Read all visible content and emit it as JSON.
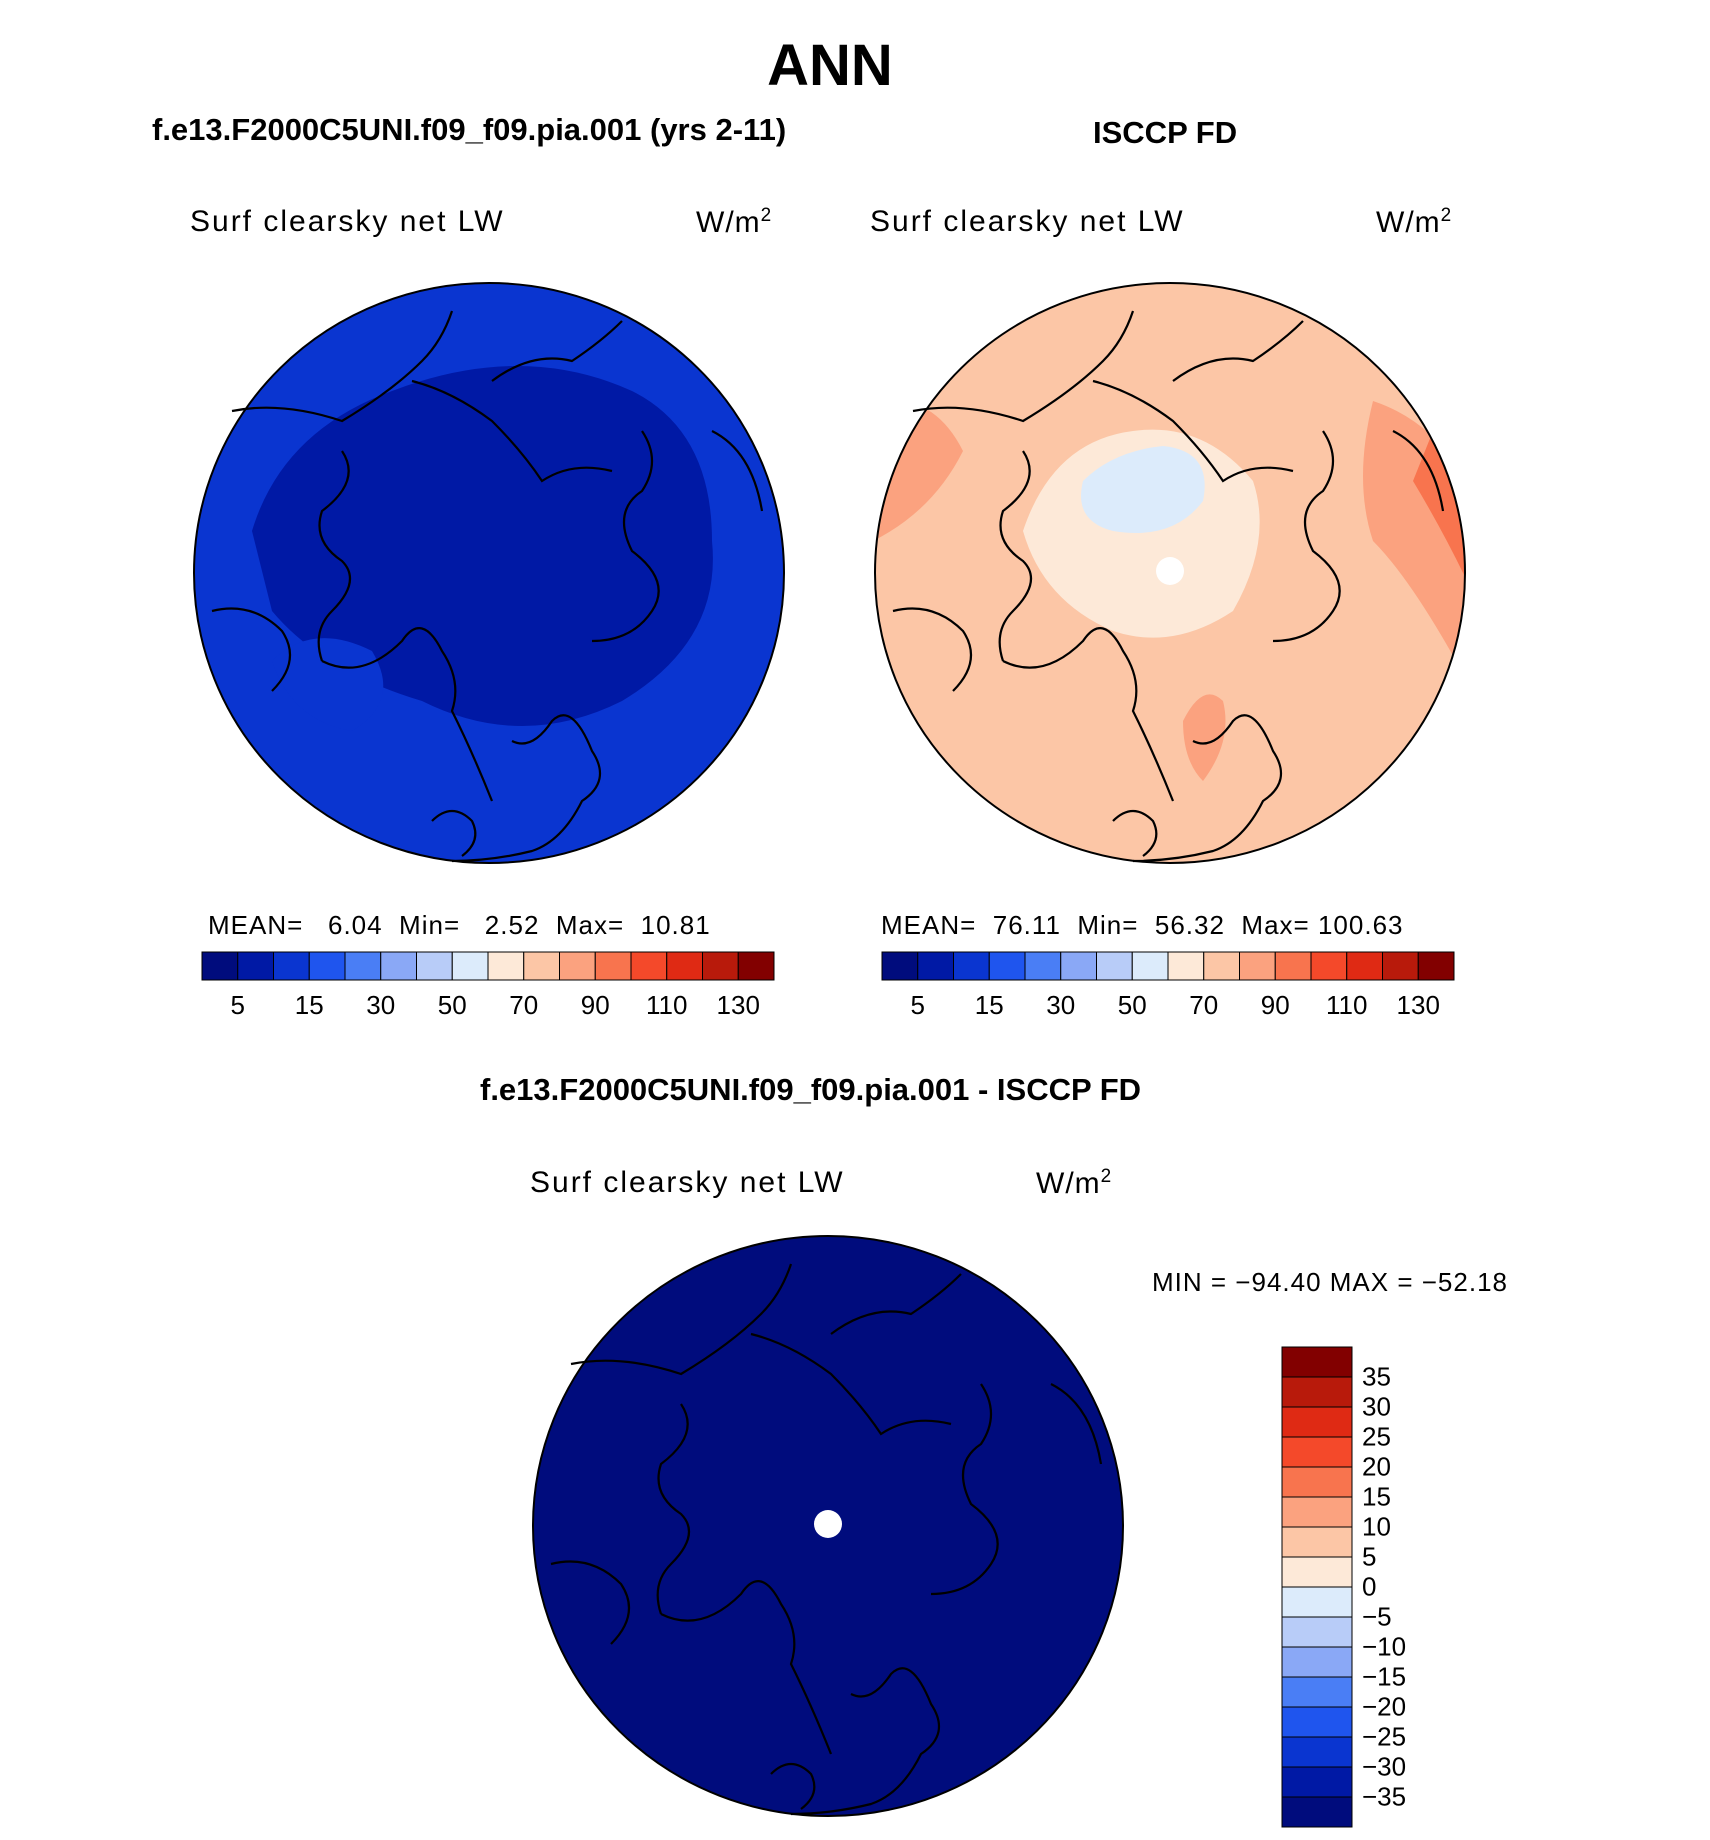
{
  "figure_title": "ANN",
  "panels": [
    {
      "title": "f.e13.F2000C5UNI.f09_f09.pia.001 (yrs 2-11)",
      "field": "Surf clearsky net LW",
      "unit": "W/m",
      "unit_exp": "2",
      "mean_label": "MEAN=",
      "mean": "6.04",
      "min_label": "Min=",
      "min": "2.52",
      "max_label": "Max=",
      "max": "10.81"
    },
    {
      "title": "ISCCP FD",
      "field": "Surf clearsky net LW",
      "unit": "W/m",
      "unit_exp": "2",
      "mean_label": "MEAN=",
      "mean": "76.11",
      "min_label": "Min=",
      "min": "56.32",
      "max_label": "Max=",
      "max": "100.63"
    }
  ],
  "diff_panel": {
    "title": "f.e13.F2000C5UNI.f09_f09.pia.001 - ISCCP FD",
    "field": "Surf clearsky net LW",
    "unit": "W/m",
    "unit_exp": "2",
    "min_label": "MIN = ",
    "min": "−94.40",
    "max_label": " MAX = ",
    "max": "−52.18"
  },
  "colorbar_horizontal": {
    "ticks": [
      "5",
      "15",
      "30",
      "50",
      "70",
      "90",
      "110",
      "130"
    ],
    "colors": [
      "#000c7d",
      "#0019a5",
      "#0a35d0",
      "#1f55ee",
      "#4a7ef5",
      "#8aa8f6",
      "#b8ccf8",
      "#dcebfb",
      "#fde9d8",
      "#fcc6a6",
      "#fba27f",
      "#f8744e",
      "#f4492a",
      "#df2a14",
      "#b81a0b",
      "#820000"
    ]
  },
  "colorbar_vertical": {
    "ticks": [
      "35",
      "30",
      "25",
      "20",
      "15",
      "10",
      "5",
      "0",
      "−5",
      "−10",
      "−15",
      "−20",
      "−25",
      "−30",
      "−35"
    ],
    "colors": [
      "#820000",
      "#b81a0b",
      "#df2a14",
      "#f4492a",
      "#f8744e",
      "#fba27f",
      "#fcc6a6",
      "#fde9d8",
      "#dcebfb",
      "#b8ccf8",
      "#8aa8f6",
      "#4a7ef5",
      "#1f55ee",
      "#0a35d0",
      "#0019a5",
      "#000c7d"
    ]
  },
  "map_colors": {
    "model_base": "#0a35d0",
    "model_dark": "#0019a5",
    "obs_base": "#fcc6a6",
    "obs_warm": "#fba27f",
    "obs_hot": "#f8744e",
    "obs_light": "#fde9d8",
    "obs_cool": "#dcebfb",
    "diff_base": "#000c7d"
  }
}
